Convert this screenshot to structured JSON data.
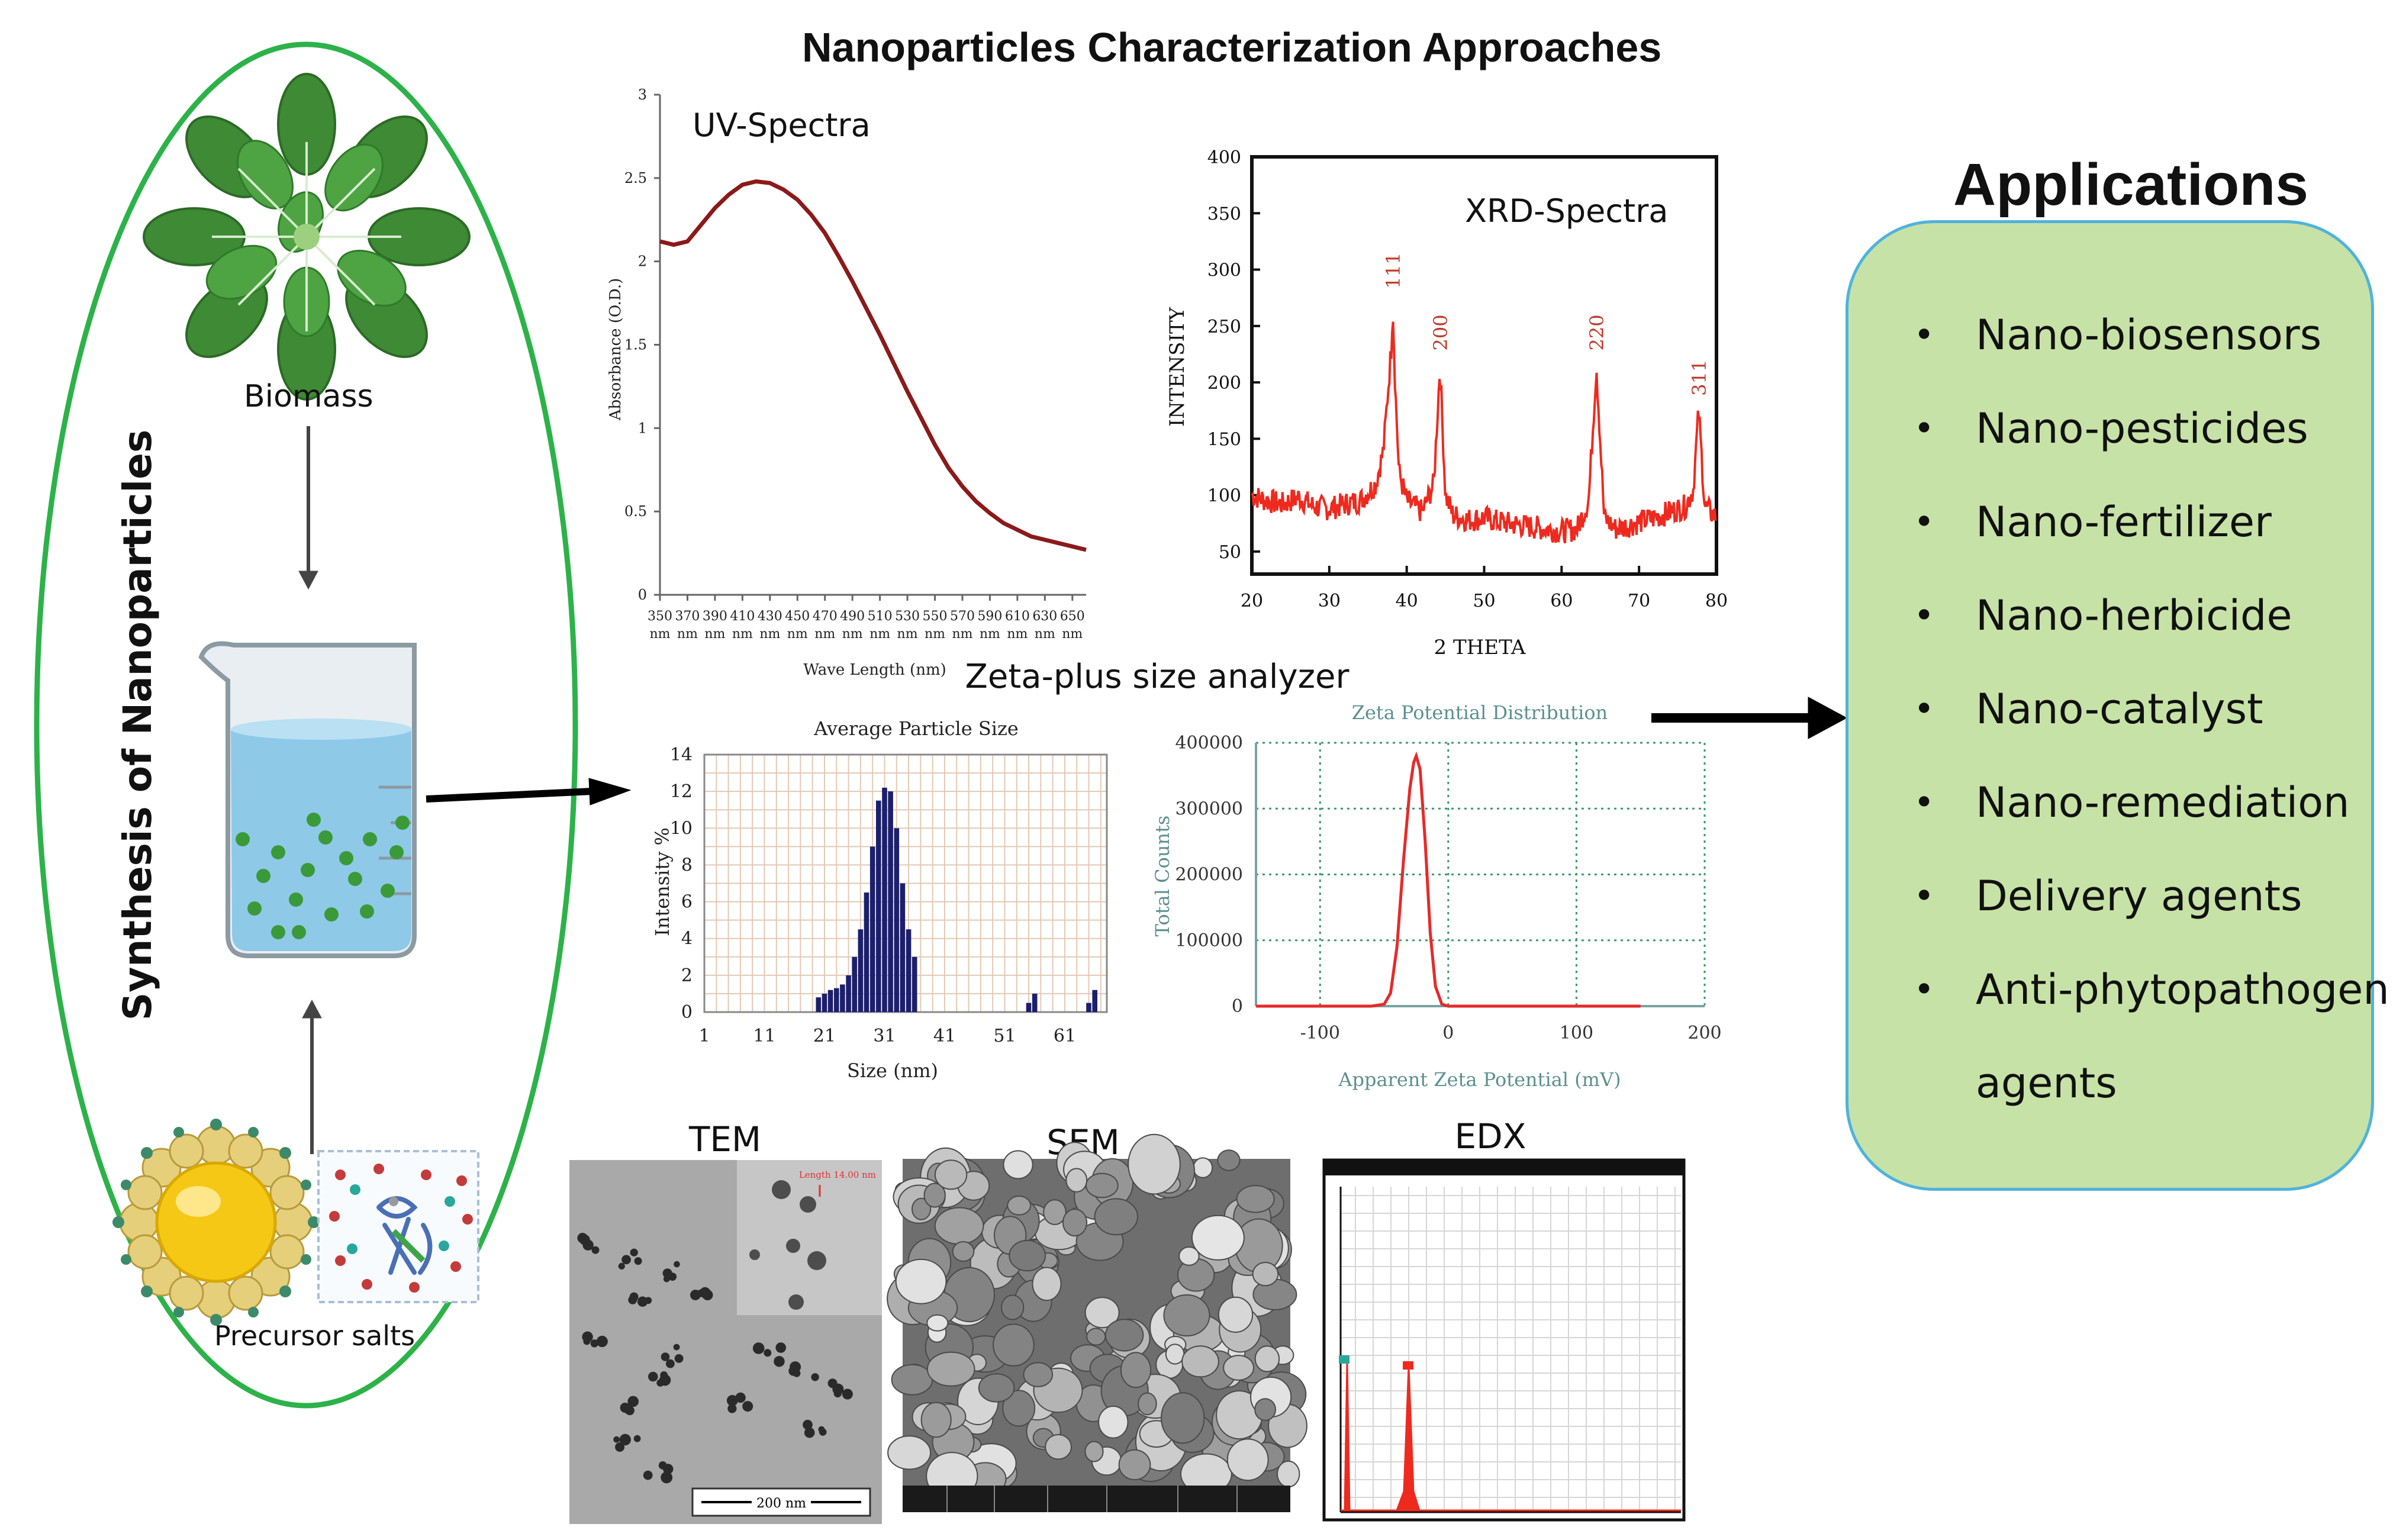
{
  "title": "Nanoparticles Characterization Approaches",
  "synthesis": {
    "heading": "Synthesis of Nanoparticles",
    "biomass_label": "Biomass",
    "precursor_label": "Precursor salts"
  },
  "uv": {
    "title": "UV-Spectra",
    "ylabel": "Absorbance (O.D.)",
    "xlabel": "Wave Length (nm)",
    "yticks": [
      "0",
      "0.5",
      "1",
      "1.5",
      "2",
      "2.5",
      "3"
    ],
    "xticks": [
      "350",
      "370",
      "390",
      "410",
      "430",
      "450",
      "470",
      "490",
      "510",
      "530",
      "550",
      "570",
      "590",
      "610",
      "630",
      "650"
    ],
    "xunit": "nm"
  },
  "xrd": {
    "title": "XRD-Spectra",
    "ylabel": "INTENSITY",
    "xlabel": "2 THETA",
    "yticks": [
      "50",
      "100",
      "150",
      "200",
      "250",
      "300",
      "350",
      "400"
    ],
    "xticks": [
      "20",
      "30",
      "40",
      "50",
      "60",
      "70",
      "80"
    ],
    "peaks": [
      "111",
      "200",
      "220",
      "311"
    ]
  },
  "zeta_header": "Zeta-plus size analyzer",
  "psd": {
    "title": "Average Particle Size",
    "ylabel": "Intensity %",
    "xlabel": "Size (nm)",
    "yticks": [
      "0",
      "2",
      "4",
      "6",
      "8",
      "10",
      "12",
      "14"
    ],
    "xticks": [
      "1",
      "11",
      "21",
      "31",
      "41",
      "51",
      "61"
    ]
  },
  "zeta": {
    "title": "Zeta Potential Distribution",
    "ylabel": "Total Counts",
    "xlabel": "Apparent Zeta Potential (mV)",
    "yticks": [
      "0",
      "100000",
      "200000",
      "300000",
      "400000"
    ],
    "xticks": [
      "-100",
      "0",
      "100",
      "200"
    ]
  },
  "micro": {
    "tem_label": "TEM",
    "sem_label": "SEM",
    "edx_label": "EDX",
    "tem_scale": "200 nm",
    "tem_inset": "Length 14.00 nm"
  },
  "applications": {
    "title": "Applications",
    "items": [
      "Nano-biosensors",
      "Nano-pesticides",
      "Nano-fertilizer",
      "Nano-herbicide",
      "Nano-catalyst",
      "Nano-remediation",
      "Delivery agents",
      "Anti-phytopathogenic"
    ],
    "last_item_continuation": "agents"
  },
  "chart_data": [
    {
      "type": "line",
      "title": "UV-Spectra",
      "xlabel": "Wave Length (nm)",
      "ylabel": "Absorbance (O.D.)",
      "xlim": [
        350,
        660
      ],
      "ylim": [
        0,
        3
      ],
      "x": [
        350,
        360,
        370,
        380,
        390,
        400,
        410,
        420,
        430,
        440,
        450,
        460,
        470,
        480,
        490,
        500,
        510,
        520,
        530,
        540,
        550,
        560,
        570,
        580,
        590,
        600,
        610,
        620,
        630,
        640,
        650,
        660
      ],
      "y": [
        2.12,
        2.1,
        2.12,
        2.22,
        2.32,
        2.4,
        2.46,
        2.48,
        2.47,
        2.43,
        2.37,
        2.28,
        2.17,
        2.03,
        1.88,
        1.72,
        1.56,
        1.39,
        1.22,
        1.06,
        0.9,
        0.76,
        0.65,
        0.56,
        0.49,
        0.43,
        0.39,
        0.35,
        0.33,
        0.31,
        0.29,
        0.27
      ]
    },
    {
      "type": "line",
      "title": "XRD-Spectra",
      "xlabel": "2 THETA",
      "ylabel": "INTENSITY",
      "xlim": [
        20,
        80
      ],
      "ylim": [
        30,
        400
      ],
      "x": [
        20,
        22,
        24,
        26,
        28,
        30,
        32,
        34,
        36,
        37,
        38,
        38.2,
        38.5,
        39,
        40,
        42,
        43.5,
        44.3,
        45,
        46,
        48,
        50,
        52,
        54,
        56,
        58,
        60,
        62,
        63.5,
        64.5,
        65.5,
        67,
        70,
        72,
        74,
        76,
        77,
        77.7,
        78.5,
        80
      ],
      "y": [
        100,
        95,
        92,
        98,
        90,
        88,
        92,
        95,
        110,
        140,
        230,
        270,
        200,
        120,
        95,
        85,
        110,
        215,
        100,
        82,
        78,
        80,
        76,
        74,
        72,
        70,
        68,
        70,
        95,
        215,
        80,
        70,
        76,
        80,
        85,
        90,
        105,
        175,
        90,
        80
      ],
      "peak_labels": [
        {
          "label": "111",
          "x": 38.2
        },
        {
          "label": "200",
          "x": 44.3
        },
        {
          "label": "220",
          "x": 64.5
        },
        {
          "label": "311",
          "x": 77.7
        }
      ]
    },
    {
      "type": "bar",
      "title": "Average Particle Size",
      "xlabel": "Size (nm)",
      "ylabel": "Intensity %",
      "xlim": [
        1,
        68
      ],
      "ylim": [
        0,
        14
      ],
      "x": [
        20,
        21,
        22,
        23,
        24,
        25,
        26,
        27,
        28,
        29,
        30,
        31,
        32,
        33,
        34,
        35,
        36,
        55,
        56,
        65,
        66
      ],
      "values": [
        0.8,
        1.0,
        1.2,
        1.3,
        1.5,
        2.0,
        3.0,
        4.5,
        6.5,
        9.0,
        11.5,
        12.2,
        12.0,
        10.0,
        7.0,
        4.5,
        3.0,
        0.5,
        1.0,
        0.5,
        1.2
      ]
    },
    {
      "type": "line",
      "title": "Zeta Potential Distribution",
      "xlabel": "Apparent Zeta Potential (mV)",
      "ylabel": "Total Counts",
      "xlim": [
        -150,
        200
      ],
      "ylim": [
        0,
        400000
      ],
      "x": [
        -150,
        -60,
        -50,
        -45,
        -40,
        -35,
        -30,
        -27,
        -25,
        -22,
        -18,
        -14,
        -10,
        -5,
        0,
        150
      ],
      "y": [
        0,
        0,
        3000,
        20000,
        90000,
        220000,
        330000,
        370000,
        380000,
        360000,
        250000,
        110000,
        30000,
        3000,
        0,
        0
      ]
    }
  ]
}
